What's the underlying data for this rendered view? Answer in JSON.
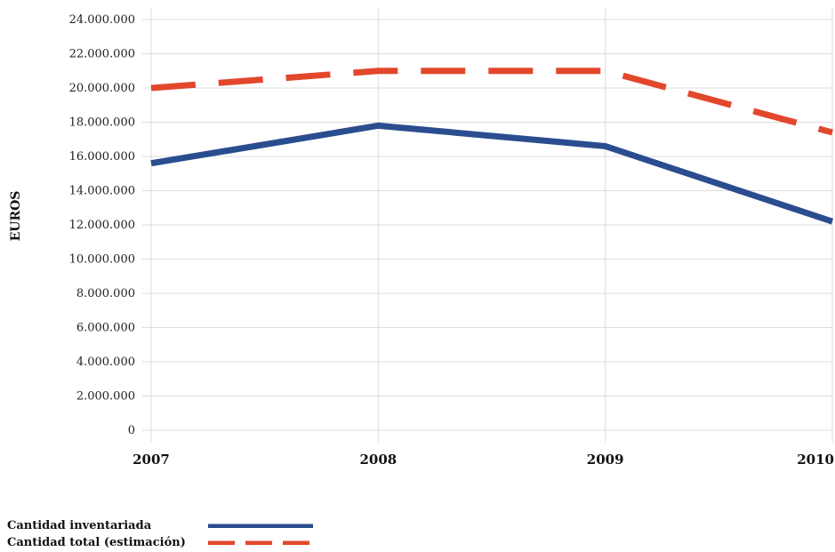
{
  "chart_data": {
    "type": "line",
    "categories": [
      "2007",
      "2008",
      "2009",
      "2010"
    ],
    "ylabel": "EUROS",
    "xlabel": "",
    "ylim": [
      0,
      24000000
    ],
    "yticks": [
      {
        "value": 0,
        "label": "0"
      },
      {
        "value": 2000000,
        "label": "2.000.000"
      },
      {
        "value": 4000000,
        "label": "4.000.000"
      },
      {
        "value": 6000000,
        "label": "6.000.000"
      },
      {
        "value": 8000000,
        "label": "8.000.000"
      },
      {
        "value": 10000000,
        "label": "10.000.000"
      },
      {
        "value": 12000000,
        "label": "12.000.000"
      },
      {
        "value": 14000000,
        "label": "14.000.000"
      },
      {
        "value": 16000000,
        "label": "16.000.000"
      },
      {
        "value": 18000000,
        "label": "18.000.000"
      },
      {
        "value": 20000000,
        "label": "20.000.000"
      },
      {
        "value": 22000000,
        "label": "22.000.000"
      },
      {
        "value": 24000000,
        "label": "24.000.000"
      }
    ],
    "grid": true,
    "legend_position": "bottom-left",
    "series": [
      {
        "name": "Cantidad inventariada",
        "values": [
          15600000,
          17800000,
          16600000,
          12200000
        ],
        "color": "#2a4d8f",
        "style": "solid"
      },
      {
        "name": "Cantidad total (estimación)",
        "values": [
          20000000,
          21000000,
          21000000,
          17400000
        ],
        "color": "#e2472b",
        "style": "dashed"
      }
    ]
  }
}
